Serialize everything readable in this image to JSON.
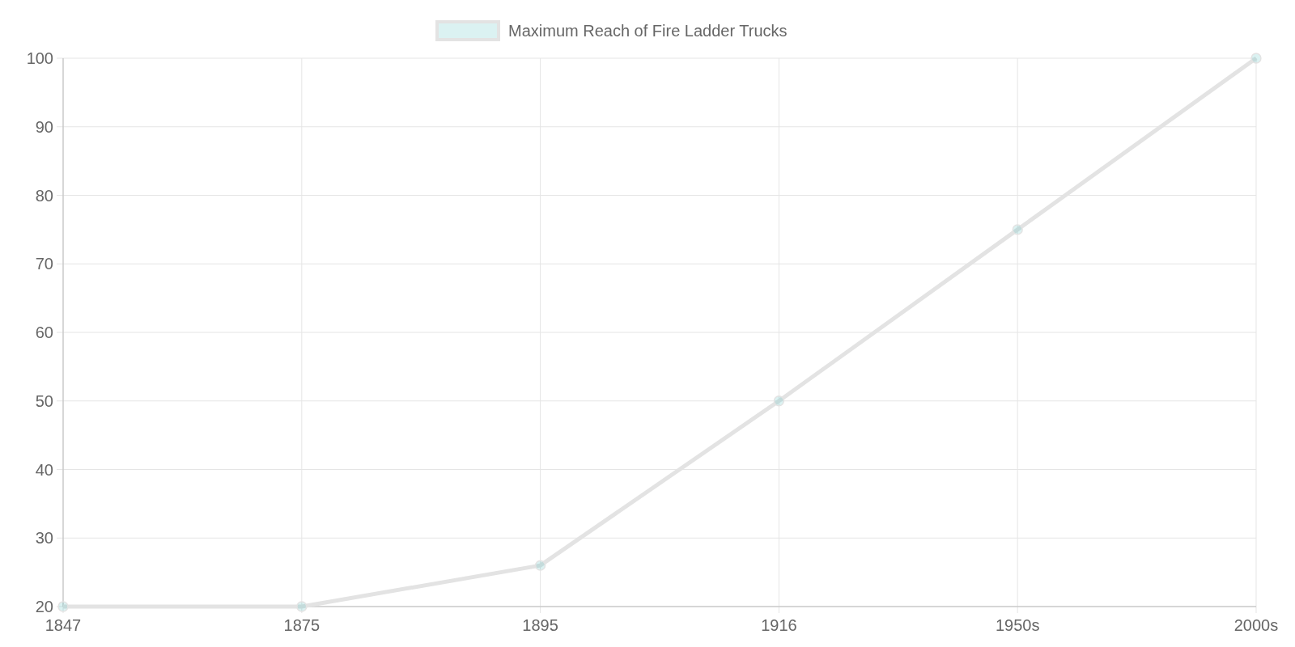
{
  "chart_data": {
    "type": "line",
    "categories": [
      "1847",
      "1875",
      "1895",
      "1916",
      "1950s",
      "2000s"
    ],
    "series": [
      {
        "name": "Maximum Reach of Fire Ladder Trucks",
        "color": "#e3e3e3",
        "values": [
          20,
          20,
          26,
          50,
          75,
          100
        ]
      }
    ],
    "ylim": [
      20,
      100
    ],
    "yticks": [
      20,
      30,
      40,
      50,
      60,
      70,
      80,
      90,
      100
    ],
    "grid": true,
    "legend": "top",
    "marker": "circle"
  }
}
